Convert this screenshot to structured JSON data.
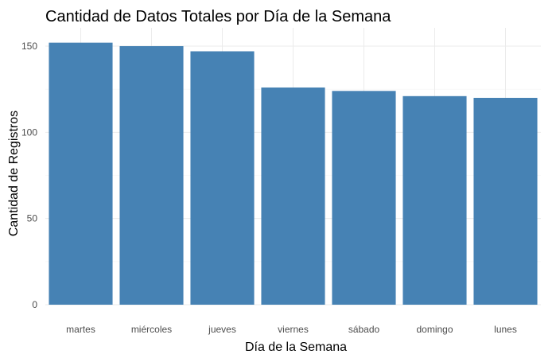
{
  "chart_data": {
    "type": "bar",
    "title": "Cantidad de Datos Totales por Día de la Semana",
    "xlabel": "Día de la Semana",
    "ylabel": "Cantidad de Registros",
    "categories": [
      "martes",
      "miércoles",
      "jueves",
      "viernes",
      "sábado",
      "domingo",
      "lunes"
    ],
    "values": [
      152,
      150,
      147,
      126,
      124,
      121,
      120
    ],
    "ylim": [
      0,
      160
    ],
    "yticks": [
      0,
      50,
      100,
      150
    ],
    "grid": true,
    "bar_color": "#4682b4"
  }
}
